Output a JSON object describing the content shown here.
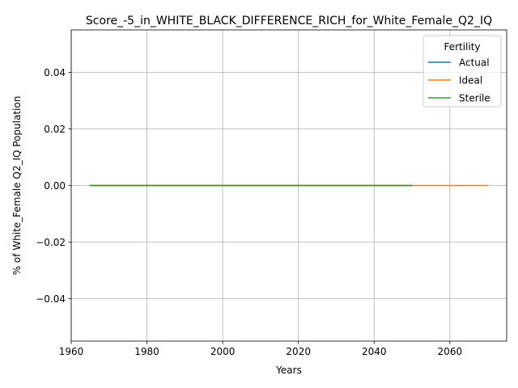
{
  "chart_data": {
    "type": "line",
    "title": "Score_-5_in_WHITE_BLACK_DIFFERENCE_RICH_for_White_Female_Q2_IQ",
    "xlabel": "Years",
    "ylabel": "% of White_Female Q2_IQ Population",
    "xlim": [
      1960,
      2075
    ],
    "ylim": [
      -0.055,
      0.055
    ],
    "x_ticks": [
      1960,
      1980,
      2000,
      2020,
      2040,
      2060
    ],
    "y_ticks": [
      -0.04,
      -0.02,
      0.0,
      0.02,
      0.04
    ],
    "y_tick_labels": [
      "−0.04",
      "−0.02",
      "0.00",
      "0.02",
      "0.04"
    ],
    "grid": true,
    "legend": {
      "title": "Fertility",
      "placement": "top-right"
    },
    "series": [
      {
        "name": "Actual",
        "color": "#1f77b4",
        "x": [
          1965,
          2050
        ],
        "y": [
          0,
          0
        ]
      },
      {
        "name": "Ideal",
        "color": "#ff7f0e",
        "x": [
          1965,
          2070
        ],
        "y": [
          0,
          0
        ]
      },
      {
        "name": "Sterile",
        "color": "#2ca02c",
        "x": [
          1965,
          2050
        ],
        "y": [
          0,
          0
        ]
      }
    ]
  }
}
